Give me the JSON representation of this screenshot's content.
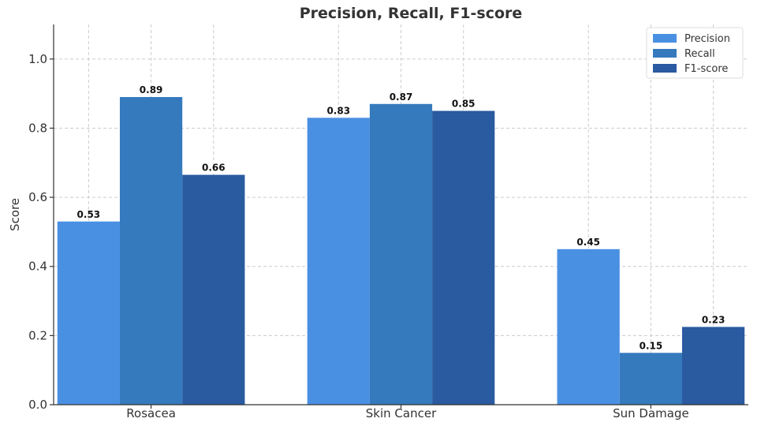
{
  "chart_data": {
    "type": "bar",
    "title": "Precision, Recall, F1-score",
    "xlabel": "",
    "ylabel": "Score",
    "categories": [
      "Rosacea",
      "Skin Cancer",
      "Sun Damage"
    ],
    "series": [
      {
        "name": "Precision",
        "color": "#4a90e2",
        "values": [
          0.53,
          0.83,
          0.45
        ],
        "labels": [
          "0.53",
          "0.83",
          "0.45"
        ]
      },
      {
        "name": "Recall",
        "color": "#357abd",
        "values": [
          0.89,
          0.87,
          0.15
        ],
        "labels": [
          "0.89",
          "0.87",
          "0.15"
        ]
      },
      {
        "name": "F1-score",
        "color": "#2a5aa0",
        "values": [
          0.665,
          0.85,
          0.225
        ],
        "labels": [
          "0.66",
          "0.85",
          "0.23"
        ]
      }
    ],
    "ylim": [
      0,
      1.1
    ],
    "yticks": [
      0.0,
      0.2,
      0.4,
      0.6,
      0.8,
      1.0
    ],
    "ytick_labels": [
      "0.0",
      "0.2",
      "0.4",
      "0.6",
      "0.8",
      "1.0"
    ],
    "grid": true,
    "legend_position": "top-right"
  }
}
